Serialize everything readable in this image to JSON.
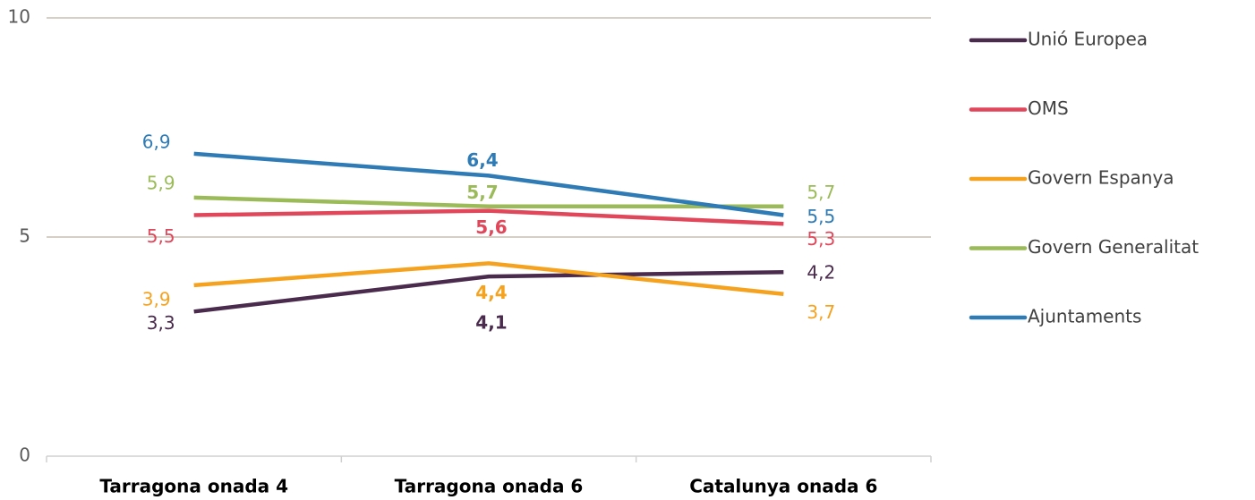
{
  "chart_data": {
    "type": "line",
    "categories": [
      "Tarragona onada 4",
      "Tarragona onada 6",
      "Catalunya onada 6"
    ],
    "series": [
      {
        "name": "Unió Europea",
        "color": "#4a2b4d",
        "values": [
          3.3,
          4.1,
          4.2
        ],
        "value_labels": [
          "3,3",
          "4,1",
          "4,2"
        ]
      },
      {
        "name": "OMS",
        "color": "#e0475a",
        "values": [
          5.5,
          5.6,
          5.3
        ],
        "value_labels": [
          "5,5",
          "5,6",
          "5,3"
        ]
      },
      {
        "name": "Govern Espanya",
        "color": "#f5a21f",
        "values": [
          3.9,
          4.4,
          3.7
        ],
        "value_labels": [
          "3,9",
          "4,4",
          "3,7"
        ]
      },
      {
        "name": "Govern Generalitat",
        "color": "#9bbb59",
        "values": [
          5.9,
          5.7,
          5.7
        ],
        "value_labels": [
          "5,9",
          "5,7",
          "5,7"
        ]
      },
      {
        "name": "Ajuntaments",
        "color": "#2e7bb6",
        "values": [
          6.9,
          6.4,
          5.5
        ],
        "value_labels": [
          "6,9",
          "6,4",
          "5,5"
        ]
      }
    ],
    "ylim": [
      0,
      10
    ],
    "yticks": [
      0,
      5,
      10
    ],
    "grid": true,
    "legend": "right"
  }
}
